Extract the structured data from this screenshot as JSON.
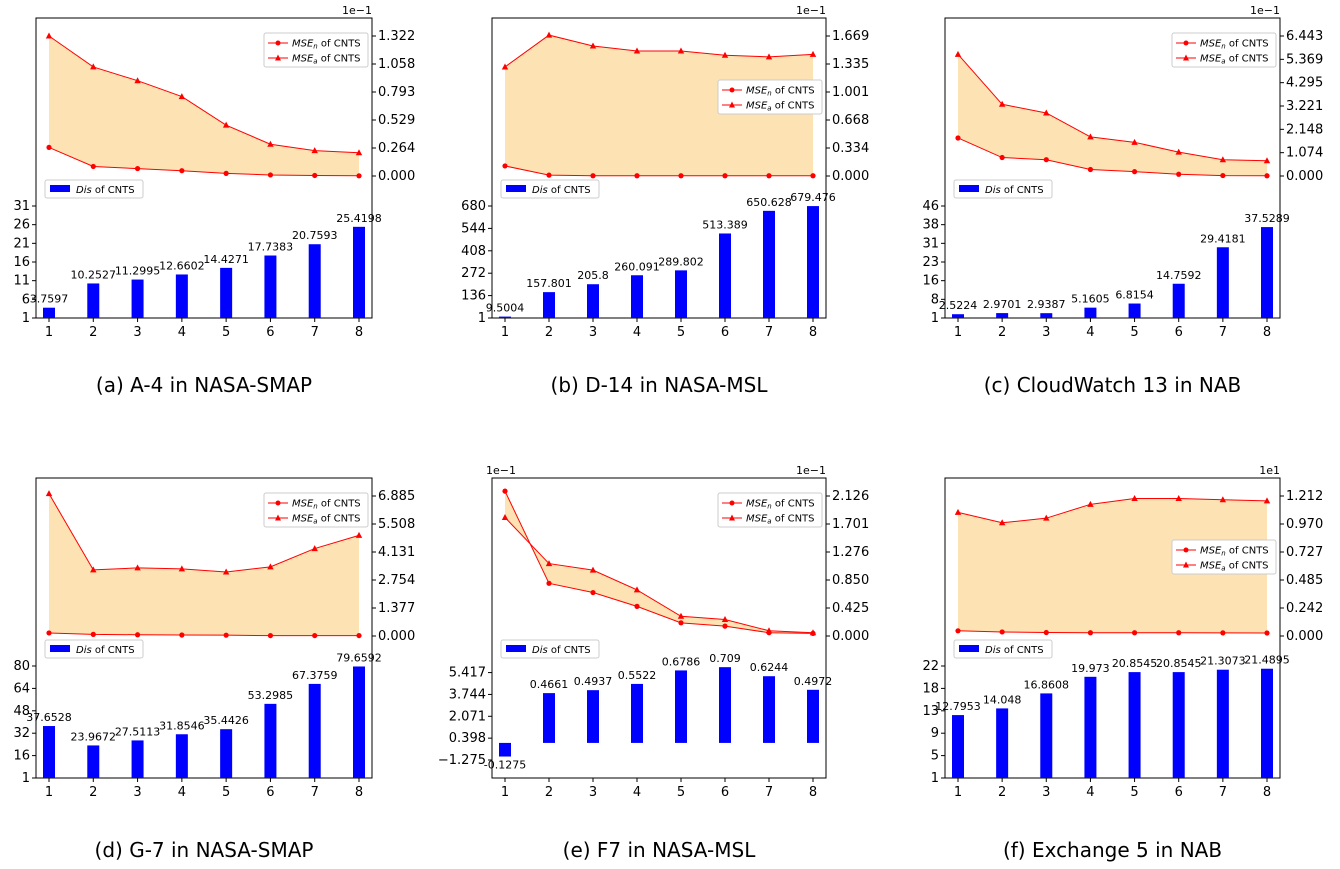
{
  "chart_data": [
    {
      "type": "bar+area",
      "caption": "(a) A-4 in NASA-SMAP",
      "categories": [
        1,
        2,
        3,
        4,
        5,
        6,
        7,
        8
      ],
      "bar_series": {
        "name": "Dis of CNTS",
        "values": [
          3.7597,
          10.2527,
          11.2995,
          12.6602,
          14.4271,
          17.7383,
          20.7593,
          25.4198
        ],
        "labels": [
          "3.7597",
          "10.2527",
          "11.2995",
          "12.6602",
          "14.4271",
          "17.7383",
          "20.7593",
          "25.4198"
        ]
      },
      "bar_yticks": [
        "1",
        "6",
        "11",
        "16",
        "21",
        "26",
        "31"
      ],
      "bar_ylim": [
        1,
        31
      ],
      "line_series": [
        {
          "name": "MSE_n of CNTS",
          "marker": "circle",
          "values": [
            0.27,
            0.09,
            0.07,
            0.05,
            0.025,
            0.01,
            0.005,
            0.002
          ]
        },
        {
          "name": "MSE_a of CNTS",
          "marker": "triangle",
          "values": [
            1.322,
            1.03,
            0.9,
            0.75,
            0.48,
            0.3,
            0.24,
            0.22
          ]
        }
      ],
      "line_yticks": [
        "0.000",
        "0.264",
        "0.529",
        "0.793",
        "1.058",
        "1.322"
      ],
      "line_ylim": [
        0,
        1.322
      ],
      "line_scale_label": "1e−1",
      "line_legend_pos": "top-right"
    },
    {
      "type": "bar+area",
      "caption": "(b) D-14 in NASA-MSL",
      "categories": [
        1,
        2,
        3,
        4,
        5,
        6,
        7,
        8
      ],
      "bar_series": {
        "name": "Dis of CNTS",
        "values": [
          9.5004,
          157.801,
          205.8,
          260.091,
          289.802,
          513.389,
          650.628,
          679.476
        ],
        "labels": [
          "9.5004",
          "157.801",
          "205.8",
          "260.091",
          "289.802",
          "513.389",
          "650.628",
          "679.476"
        ]
      },
      "bar_yticks": [
        "1",
        "136",
        "272",
        "408",
        "544",
        "680"
      ],
      "bar_ylim": [
        1,
        680
      ],
      "line_series": [
        {
          "name": "MSE_n of CNTS",
          "marker": "circle",
          "values": [
            0.12,
            0.01,
            0.003,
            0.003,
            0.003,
            0.003,
            0.003,
            0.003
          ]
        },
        {
          "name": "MSE_a of CNTS",
          "marker": "triangle",
          "values": [
            1.3,
            1.68,
            1.55,
            1.49,
            1.49,
            1.44,
            1.42,
            1.45
          ]
        }
      ],
      "line_yticks": [
        "0.000",
        "0.334",
        "0.668",
        "1.001",
        "1.335",
        "1.669"
      ],
      "line_ylim": [
        0,
        1.669
      ],
      "line_scale_label": "1e−1",
      "line_legend_pos": "center-right"
    },
    {
      "type": "bar+area",
      "caption": "(c) CloudWatch 13 in NAB",
      "categories": [
        1,
        2,
        3,
        4,
        5,
        6,
        7,
        8
      ],
      "bar_series": {
        "name": "Dis of CNTS",
        "values": [
          2.5224,
          2.9701,
          2.9387,
          5.1605,
          6.8154,
          14.7592,
          29.4181,
          37.5289
        ],
        "labels": [
          "2.5224",
          "2.9701",
          "2.9387",
          "5.1605",
          "6.8154",
          "14.7592",
          "29.4181",
          "37.5289"
        ]
      },
      "bar_yticks": [
        "1",
        "8",
        "16",
        "23",
        "31",
        "38",
        "46"
      ],
      "bar_ylim": [
        1,
        46
      ],
      "line_series": [
        {
          "name": "MSE_n of CNTS",
          "marker": "circle",
          "values": [
            1.75,
            0.85,
            0.75,
            0.3,
            0.2,
            0.08,
            0.02,
            0.01
          ]
        },
        {
          "name": "MSE_a of CNTS",
          "marker": "triangle",
          "values": [
            5.6,
            3.3,
            2.9,
            1.8,
            1.55,
            1.1,
            0.75,
            0.7
          ]
        }
      ],
      "line_yticks": [
        "0.000",
        "1.074",
        "2.148",
        "3.221",
        "4.295",
        "5.369",
        "6.443"
      ],
      "line_ylim": [
        0,
        6.443
      ],
      "line_scale_label": "1e−1",
      "line_legend_pos": "top-right"
    },
    {
      "type": "bar+area",
      "caption": "(d) G-7 in NASA-SMAP",
      "categories": [
        1,
        2,
        3,
        4,
        5,
        6,
        7,
        8
      ],
      "bar_series": {
        "name": "Dis of CNTS",
        "values": [
          37.6528,
          23.9672,
          27.5113,
          31.8546,
          35.4426,
          53.2985,
          67.3759,
          79.6592
        ],
        "labels": [
          "37.6528",
          "23.9672",
          "27.5113",
          "31.8546",
          "35.4426",
          "53.2985",
          "67.3759",
          "79.6592"
        ]
      },
      "bar_yticks": [
        "1",
        "16",
        "32",
        "48",
        "64",
        "80"
      ],
      "bar_ylim": [
        1,
        80
      ],
      "line_series": [
        {
          "name": "MSE_n of CNTS",
          "marker": "circle",
          "values": [
            0.15,
            0.08,
            0.06,
            0.05,
            0.04,
            0.02,
            0.02,
            0.02
          ]
        },
        {
          "name": "MSE_a of CNTS",
          "marker": "triangle",
          "values": [
            7.0,
            3.25,
            3.35,
            3.3,
            3.15,
            3.4,
            4.3,
            4.95
          ]
        }
      ],
      "line_yticks": [
        "0.000",
        "1.377",
        "2.754",
        "4.131",
        "5.508",
        "6.885"
      ],
      "line_ylim": [
        0,
        6.885
      ],
      "line_scale_label": "",
      "line_legend_pos": "top-right"
    },
    {
      "type": "bar+area",
      "caption": "(e) F7 in NASA-MSL",
      "categories": [
        1,
        2,
        3,
        4,
        5,
        6,
        7,
        8
      ],
      "bar_series": {
        "name": "Dis of CNTS",
        "values": [
          -0.1275,
          0.4661,
          0.4937,
          0.5522,
          0.6786,
          0.709,
          0.6244,
          0.4972
        ],
        "labels": [
          "-0.1275",
          "0.4661",
          "0.4937",
          "0.5522",
          "0.6786",
          "0.709",
          "0.6244",
          "0.4972"
        ]
      },
      "bar_yticks": [
        "−1.275",
        "0.398",
        "2.071",
        "3.744",
        "5.417"
      ],
      "bar_ylim": [
        -1.6,
        7.2
      ],
      "bar_scale_label": "1e−1",
      "line_series": [
        {
          "name": "MSE_n of CNTS",
          "marker": "circle",
          "values": [
            2.2,
            0.8,
            0.66,
            0.45,
            0.2,
            0.15,
            0.05,
            0.04
          ]
        },
        {
          "name": "MSE_a of CNTS",
          "marker": "triangle",
          "values": [
            1.8,
            1.1,
            1.0,
            0.7,
            0.3,
            0.25,
            0.08,
            0.05
          ]
        }
      ],
      "line_yticks": [
        "0.000",
        "0.425",
        "0.850",
        "1.276",
        "1.701",
        "2.126"
      ],
      "line_ylim": [
        0,
        2.126
      ],
      "line_scale_label": "1e−1",
      "line_legend_pos": "top-right"
    },
    {
      "type": "bar+area",
      "caption": "(f) Exchange 5 in NAB",
      "categories": [
        1,
        2,
        3,
        4,
        5,
        6,
        7,
        8
      ],
      "bar_series": {
        "name": "Dis of CNTS",
        "values": [
          12.7953,
          14.048,
          16.8608,
          19.973,
          20.85452,
          20.8545,
          21.3073,
          21.4895
        ],
        "labels": [
          "12.7953",
          "14.048",
          "16.8608",
          "19.973",
          "20.8545",
          "20.8545",
          "21.3073",
          "21.4895"
        ]
      },
      "bar_yticks": [
        "1",
        "5",
        "9",
        "13",
        "18",
        "22"
      ],
      "bar_ylim": [
        1,
        22
      ],
      "line_series": [
        {
          "name": "MSE_n of CNTS",
          "marker": "circle",
          "values": [
            0.045,
            0.035,
            0.03,
            0.028,
            0.028,
            0.028,
            0.027,
            0.026
          ]
        },
        {
          "name": "MSE_a of CNTS",
          "marker": "triangle",
          "values": [
            1.07,
            0.98,
            1.02,
            1.14,
            1.19,
            1.19,
            1.18,
            1.17
          ]
        }
      ],
      "line_yticks": [
        "0.000",
        "0.242",
        "0.485",
        "0.727",
        "0.970",
        "1.212"
      ],
      "line_ylim": [
        0,
        1.212
      ],
      "line_scale_label": "1e1",
      "line_legend_pos": "center-right"
    }
  ],
  "colors": {
    "bar": "#0000ff",
    "line": "#ff0000",
    "fill": "#fde2b3"
  },
  "legend_labels": {
    "bar_prefix": "Dis",
    "bar_suffix": " of CNTS",
    "mse_base": "MSE",
    "mse_n_sub": "n",
    "mse_a_sub": "a",
    "mse_suffix": " of CNTS"
  }
}
